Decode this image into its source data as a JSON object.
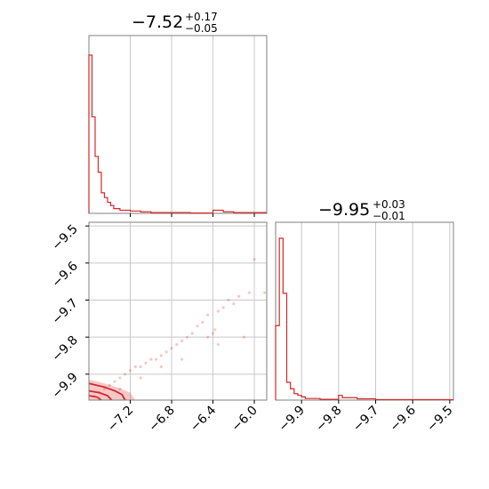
{
  "chart_data": [
    {
      "type": "histogram",
      "panel": "x1-marginal",
      "title": {
        "median": "−7.52",
        "plus": "+0.17",
        "minus": "−0.05"
      },
      "xlim": [
        -7.6,
        -5.88
      ],
      "grid": true,
      "color": "#d62728",
      "bins": [
        {
          "x": -7.6,
          "y": 1.0
        },
        {
          "x": -7.57,
          "y": 0.61
        },
        {
          "x": -7.54,
          "y": 0.36
        },
        {
          "x": -7.51,
          "y": 0.26
        },
        {
          "x": -7.48,
          "y": 0.13
        },
        {
          "x": -7.45,
          "y": 0.1
        },
        {
          "x": -7.42,
          "y": 0.07
        },
        {
          "x": -7.39,
          "y": 0.05
        },
        {
          "x": -7.36,
          "y": 0.03
        },
        {
          "x": -7.3,
          "y": 0.02
        },
        {
          "x": -7.2,
          "y": 0.015
        },
        {
          "x": -7.1,
          "y": 0.01
        },
        {
          "x": -7.0,
          "y": 0.005
        },
        {
          "x": -6.8,
          "y": 0.005
        },
        {
          "x": -6.62,
          "y": 0.002
        },
        {
          "x": -6.4,
          "y": 0.02
        },
        {
          "x": -6.3,
          "y": 0.01
        },
        {
          "x": -6.2,
          "y": 0.005
        },
        {
          "x": -6.1,
          "y": 0.005
        },
        {
          "x": -5.88,
          "y": 0.005
        }
      ]
    },
    {
      "type": "scatter",
      "panel": "joint",
      "xlim": [
        -7.6,
        -5.88
      ],
      "ylim": [
        -9.97,
        -9.49
      ],
      "xticks": [
        "−7.2",
        "−6.8",
        "−6.4",
        "−6.0"
      ],
      "xtick_values": [
        -7.2,
        -6.8,
        -6.4,
        -6.0
      ],
      "yticks": [
        "−9.5",
        "−9.6",
        "−9.7",
        "−9.8",
        "−9.9"
      ],
      "ytick_values": [
        -9.5,
        -9.6,
        -9.7,
        -9.8,
        -9.9
      ],
      "grid": true,
      "color": "#d62728",
      "points": [
        {
          "x": -7.55,
          "y": -9.96
        },
        {
          "x": -7.5,
          "y": -9.95
        },
        {
          "x": -7.45,
          "y": -9.94
        },
        {
          "x": -7.4,
          "y": -9.93
        },
        {
          "x": -7.35,
          "y": -9.92
        },
        {
          "x": -7.3,
          "y": -9.91
        },
        {
          "x": -7.25,
          "y": -9.9
        },
        {
          "x": -7.2,
          "y": -9.89
        },
        {
          "x": -7.15,
          "y": -9.88
        },
        {
          "x": -7.1,
          "y": -9.88
        },
        {
          "x": -7.05,
          "y": -9.87
        },
        {
          "x": -7.0,
          "y": -9.86
        },
        {
          "x": -6.95,
          "y": -9.86
        },
        {
          "x": -6.9,
          "y": -9.85
        },
        {
          "x": -6.85,
          "y": -9.84
        },
        {
          "x": -6.8,
          "y": -9.83
        },
        {
          "x": -6.75,
          "y": -9.82
        },
        {
          "x": -6.7,
          "y": -9.81
        },
        {
          "x": -6.65,
          "y": -9.8
        },
        {
          "x": -6.6,
          "y": -9.79
        },
        {
          "x": -6.55,
          "y": -9.77
        },
        {
          "x": -6.5,
          "y": -9.76
        },
        {
          "x": -6.45,
          "y": -9.74
        },
        {
          "x": -6.4,
          "y": -9.79
        },
        {
          "x": -6.38,
          "y": -9.78
        },
        {
          "x": -6.35,
          "y": -9.73
        },
        {
          "x": -6.3,
          "y": -9.72
        },
        {
          "x": -6.25,
          "y": -9.7
        },
        {
          "x": -6.2,
          "y": -9.71
        },
        {
          "x": -6.15,
          "y": -9.69
        },
        {
          "x": -6.1,
          "y": -9.8
        },
        {
          "x": -6.05,
          "y": -9.68
        },
        {
          "x": -5.9,
          "y": -9.68
        },
        {
          "x": -6.0,
          "y": -9.59
        },
        {
          "x": -6.7,
          "y": -9.86
        },
        {
          "x": -6.9,
          "y": -9.88
        },
        {
          "x": -7.1,
          "y": -9.91
        },
        {
          "x": -7.3,
          "y": -9.94
        },
        {
          "x": -6.45,
          "y": -9.8
        },
        {
          "x": -6.35,
          "y": -9.82
        }
      ],
      "contours": [
        [
          [
            -7.6,
            -9.925
          ],
          [
            -7.45,
            -9.935
          ],
          [
            -7.35,
            -9.945
          ],
          [
            -7.28,
            -9.955
          ],
          [
            -7.25,
            -9.97
          ]
        ],
        [
          [
            -7.6,
            -9.945
          ],
          [
            -7.5,
            -9.95
          ],
          [
            -7.42,
            -9.958
          ],
          [
            -7.38,
            -9.97
          ]
        ],
        [
          [
            -7.6,
            -9.958
          ],
          [
            -7.52,
            -9.962
          ],
          [
            -7.48,
            -9.97
          ]
        ]
      ]
    },
    {
      "type": "histogram",
      "panel": "x2-marginal",
      "title": {
        "median": "−9.95",
        "plus": "+0.03",
        "minus": "−0.01"
      },
      "xlim": [
        -9.97,
        -9.49
      ],
      "xticks": [
        "−9.9",
        "−9.8",
        "−9.7",
        "−9.6",
        "−9.5"
      ],
      "xtick_values": [
        -9.9,
        -9.8,
        -9.7,
        -9.6,
        -9.5
      ],
      "grid": true,
      "color": "#d62728",
      "bins": [
        {
          "x": -9.97,
          "y": 0.46
        },
        {
          "x": -9.96,
          "y": 1.0
        },
        {
          "x": -9.95,
          "y": 0.66
        },
        {
          "x": -9.94,
          "y": 0.11
        },
        {
          "x": -9.93,
          "y": 0.07
        },
        {
          "x": -9.92,
          "y": 0.04
        },
        {
          "x": -9.91,
          "y": 0.03
        },
        {
          "x": -9.9,
          "y": 0.02
        },
        {
          "x": -9.89,
          "y": 0.01
        },
        {
          "x": -9.85,
          "y": 0.005
        },
        {
          "x": -9.8,
          "y": 0.03
        },
        {
          "x": -9.79,
          "y": 0.015
        },
        {
          "x": -9.75,
          "y": 0.008
        },
        {
          "x": -9.7,
          "y": 0.003
        },
        {
          "x": -9.5,
          "y": 0.002
        }
      ]
    }
  ]
}
